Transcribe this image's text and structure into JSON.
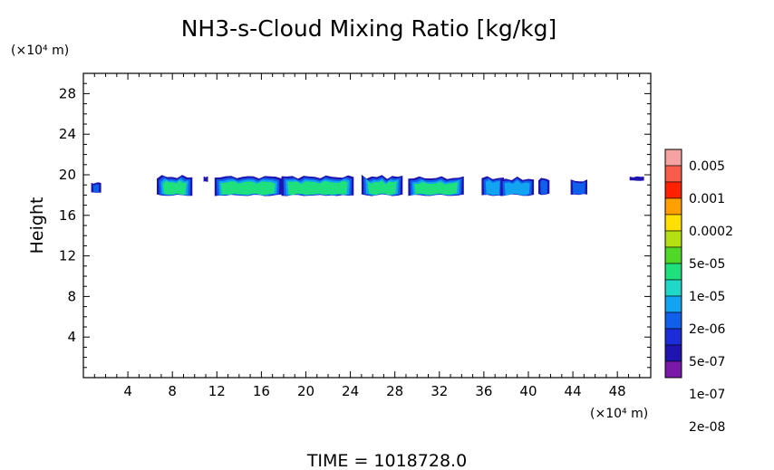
{
  "chart_data": {
    "type": "heatmap",
    "title": "NH3-s-Cloud Mixing Ratio [kg/kg]",
    "xlabel": "",
    "ylabel": "Height",
    "x_unit_label": "(×10⁴ m)",
    "y_unit_label": "(×10⁴ m)",
    "xlim": [
      0,
      51
    ],
    "ylim": [
      0,
      30
    ],
    "x_ticks": [
      "4",
      "8",
      "12",
      "16",
      "20",
      "24",
      "28",
      "32",
      "36",
      "40",
      "44",
      "48"
    ],
    "x_tick_values": [
      4,
      8,
      12,
      16,
      20,
      24,
      28,
      32,
      36,
      40,
      44,
      48
    ],
    "y_ticks": [
      "4",
      "8",
      "12",
      "16",
      "20",
      "24",
      "28"
    ],
    "y_tick_values": [
      4,
      8,
      12,
      16,
      20,
      24,
      28
    ],
    "colorbar": {
      "labels": [
        "0.005",
        "0.001",
        "0.0002",
        "5e-05",
        "1e-05",
        "2e-06",
        "5e-07",
        "1e-07",
        "2e-08"
      ],
      "colors": [
        "#f4a2a2",
        "#f85c4a",
        "#ff2200",
        "#ffa000",
        "#ffe000",
        "#b4e014",
        "#50d828",
        "#1ee07c",
        "#20d8c8",
        "#12a4f0",
        "#1060ec",
        "#1c2cd8",
        "#2014b0",
        "#7a18a8"
      ]
    },
    "cloud_cells": [
      {
        "x0": 0.7,
        "x1": 1.6,
        "y_top": 19.2,
        "y_bot": 18.2,
        "level": 1
      },
      {
        "x0": 6.6,
        "x1": 9.8,
        "y_top": 19.8,
        "y_bot": 17.9,
        "level": 3
      },
      {
        "x0": 10.8,
        "x1": 11.2,
        "y_top": 19.8,
        "y_bot": 19.3,
        "level": 0
      },
      {
        "x0": 11.8,
        "x1": 17.8,
        "y_top": 19.8,
        "y_bot": 17.9,
        "level": 3
      },
      {
        "x0": 17.8,
        "x1": 24.3,
        "y_top": 19.8,
        "y_bot": 17.9,
        "level": 3
      },
      {
        "x0": 25.0,
        "x1": 28.7,
        "y_top": 19.8,
        "y_bot": 17.9,
        "level": 3
      },
      {
        "x0": 29.2,
        "x1": 34.2,
        "y_top": 19.7,
        "y_bot": 17.9,
        "level": 3
      },
      {
        "x0": 35.8,
        "x1": 37.8,
        "y_top": 19.7,
        "y_bot": 17.9,
        "level": 2
      },
      {
        "x0": 37.5,
        "x1": 40.5,
        "y_top": 19.6,
        "y_bot": 17.9,
        "level": 2
      },
      {
        "x0": 40.9,
        "x1": 41.9,
        "y_top": 19.6,
        "y_bot": 18.0,
        "level": 1
      },
      {
        "x0": 43.8,
        "x1": 45.3,
        "y_top": 19.4,
        "y_bot": 18.0,
        "level": 1
      },
      {
        "x0": 49.1,
        "x1": 50.4,
        "y_top": 19.8,
        "y_bot": 19.4,
        "level": 0
      }
    ],
    "footer": "TIME = 1018728.0"
  }
}
